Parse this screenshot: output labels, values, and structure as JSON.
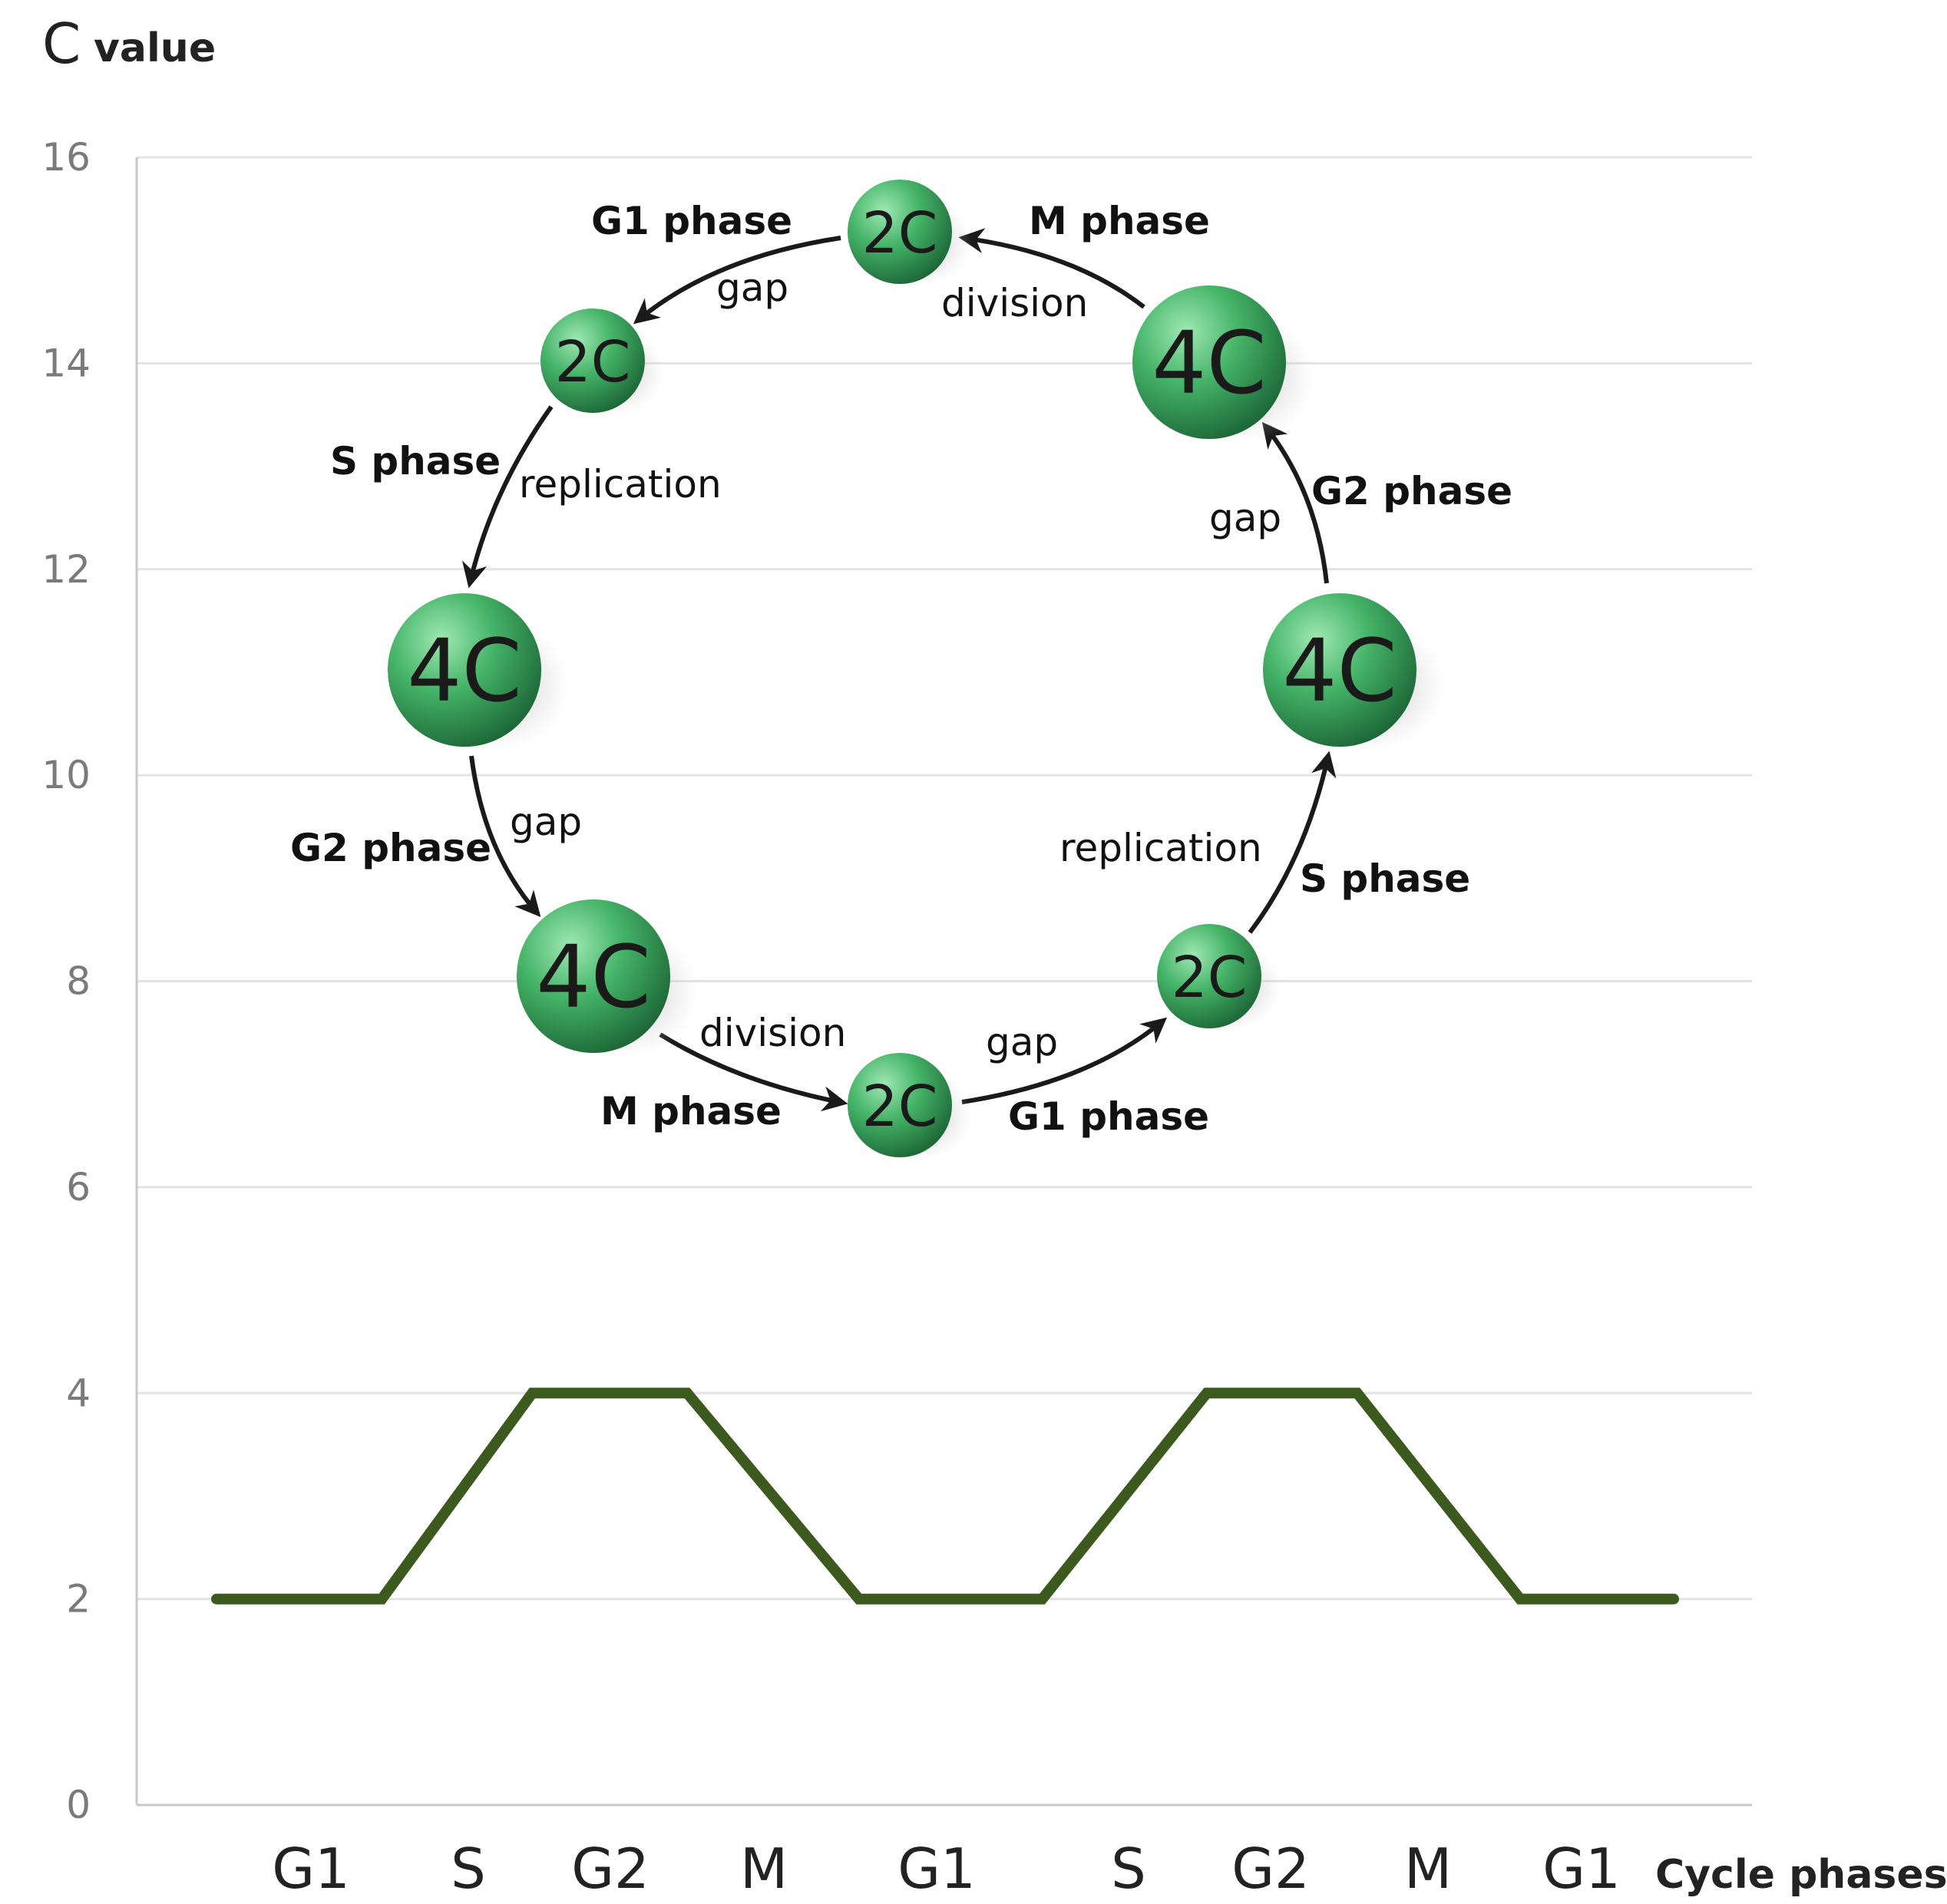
{
  "chart_data": {
    "type": "line",
    "title_main": "C",
    "title_sub": "value",
    "xlabel": "Cycle phases",
    "ylabel": "C value",
    "ylim": [
      0,
      16
    ],
    "yticks": [
      "0",
      "2",
      "4",
      "6",
      "8",
      "10",
      "12",
      "14",
      "16"
    ],
    "categories": [
      "G1",
      "S",
      "G2",
      "M",
      "G1",
      "S",
      "G2",
      "M",
      "G1"
    ],
    "grid": true,
    "series": [
      {
        "name": "C value",
        "color": "#3d5a1e",
        "x": [
          -0.6,
          0.45,
          1.45,
          2.5,
          3.55,
          4.55,
          5.55,
          6.55,
          7.6,
          8.6
        ],
        "y": [
          2,
          2,
          4,
          4,
          2,
          2,
          4,
          4,
          2,
          2
        ]
      }
    ]
  },
  "cycle_diagram": {
    "cells": [
      {
        "label": "2C",
        "size": "small"
      },
      {
        "label": "4C",
        "size": "large"
      },
      {
        "label": "4C",
        "size": "large"
      },
      {
        "label": "2C",
        "size": "small"
      },
      {
        "label": "2C",
        "size": "small"
      },
      {
        "label": "4C",
        "size": "large"
      },
      {
        "label": "4C",
        "size": "large"
      },
      {
        "label": "2C",
        "size": "small"
      }
    ],
    "phase_labels": [
      "G1 phase",
      "M phase",
      "S phase",
      "G2 phase",
      "G2 phase",
      "S phase",
      "M phase",
      "G1 phase"
    ],
    "process_labels": [
      "gap",
      "division",
      "replication",
      "gap",
      "gap",
      "replication",
      "division",
      "gap"
    ]
  },
  "colors": {
    "line": "#3d5a1e",
    "grid": "#e3e3e3",
    "axis": "#c8c8c8",
    "cell_light": "#8fe0a5",
    "cell_mid": "#3fae63",
    "cell_dark": "#1f6e3b"
  }
}
